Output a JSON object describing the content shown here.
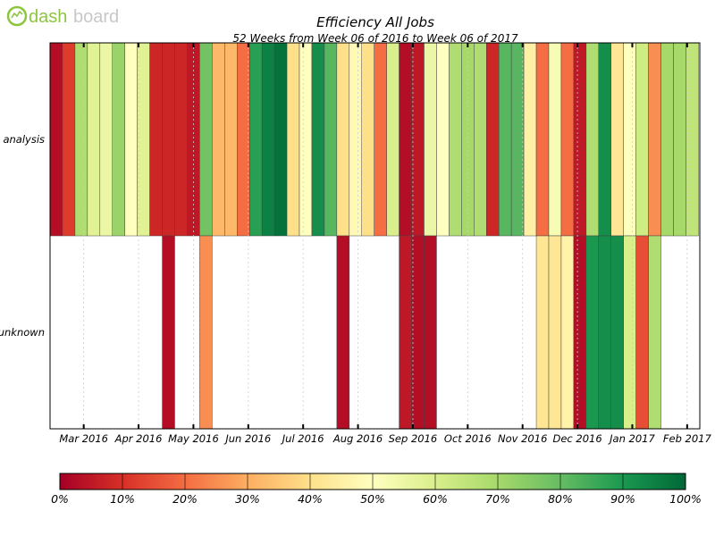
{
  "logo": {
    "text_dash": "dash",
    "text_board": "board"
  },
  "colors": {
    "logo_green": "#8cc63f",
    "logo_gray": "#c8c8c8",
    "edge": "#444444",
    "grid": "#cccccc"
  },
  "chart_data": {
    "type": "heatmap",
    "title": "Efficiency All Jobs",
    "subtitle": "52 Weeks from Week 06 of 2016 to Week 06 of 2017",
    "xlabel": "",
    "ylabel": "",
    "colormap": "RdYlGn",
    "value_range": [
      0,
      100
    ],
    "rows": [
      "analysis",
      "unknown"
    ],
    "weeks": 52,
    "month_ticks": [
      {
        "week": 2.7,
        "label": "Mar 2016"
      },
      {
        "week": 7.1,
        "label": "Apr 2016"
      },
      {
        "week": 11.5,
        "label": "May 2016"
      },
      {
        "week": 15.9,
        "label": "Jun 2016"
      },
      {
        "week": 20.3,
        "label": "Jul 2016"
      },
      {
        "week": 24.7,
        "label": "Aug 2016"
      },
      {
        "week": 29.1,
        "label": "Sep 2016"
      },
      {
        "week": 33.5,
        "label": "Oct 2016"
      },
      {
        "week": 37.9,
        "label": "Nov 2016"
      },
      {
        "week": 42.3,
        "label": "Dec 2016"
      },
      {
        "week": 46.7,
        "label": "Jan 2017"
      },
      {
        "week": 51.1,
        "label": "Feb 2017"
      }
    ],
    "series": [
      {
        "name": "analysis",
        "values": [
          3,
          12,
          68,
          58,
          55,
          72,
          50,
          58,
          8,
          8,
          8,
          5,
          78,
          32,
          32,
          20,
          88,
          95,
          98,
          40,
          50,
          92,
          82,
          40,
          48,
          40,
          20,
          60,
          3,
          5,
          55,
          50,
          68,
          70,
          68,
          8,
          82,
          82,
          45,
          20,
          52,
          20,
          5,
          68,
          92,
          42,
          50,
          62,
          25,
          70,
          70,
          65
        ]
      },
      {
        "name": "unknown",
        "values": [
          null,
          null,
          null,
          null,
          null,
          null,
          null,
          null,
          null,
          3,
          null,
          null,
          25,
          null,
          null,
          null,
          null,
          null,
          null,
          null,
          null,
          null,
          null,
          3,
          null,
          null,
          null,
          null,
          5,
          3,
          3,
          null,
          null,
          null,
          null,
          null,
          null,
          null,
          null,
          42,
          42,
          46,
          3,
          90,
          92,
          92,
          60,
          15,
          68,
          null,
          null,
          null
        ]
      }
    ],
    "colorbar_ticks": [
      "0%",
      "10%",
      "20%",
      "30%",
      "40%",
      "50%",
      "60%",
      "70%",
      "80%",
      "90%",
      "100%"
    ],
    "grid": true
  }
}
